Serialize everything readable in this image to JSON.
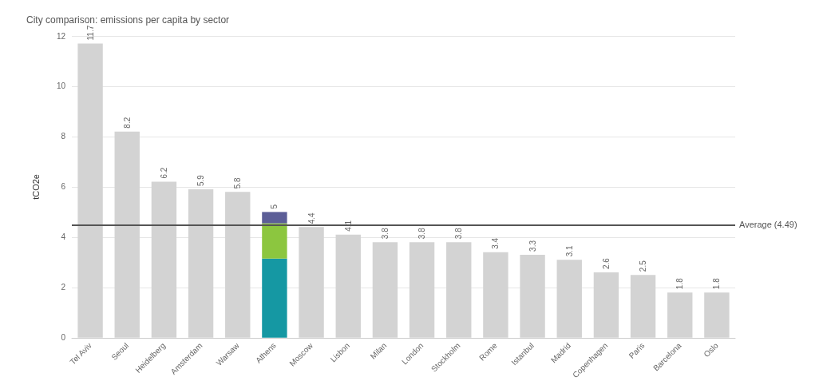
{
  "chart_data": {
    "type": "bar",
    "title": "City comparison: emissions per capita by sector",
    "ylabel": "tCO2e",
    "categories": [
      "Tel Aviv",
      "Seoul",
      "Heidelberg",
      "Amsterdam",
      "Warsaw",
      "Athens",
      "Moscow",
      "Lisbon",
      "Milan",
      "London",
      "Stockholm",
      "Rome",
      "Istanbul",
      "Madrid",
      "Copenhagen",
      "Paris",
      "Barcelona",
      "Oslo"
    ],
    "series": [
      {
        "color": "#d3d3d3",
        "values": [
          11.7,
          8.2,
          6.2,
          5.9,
          5.8,
          null,
          4.4,
          4.1,
          3.8,
          3.8,
          3.8,
          3.4,
          3.3,
          3.1,
          2.6,
          2.5,
          1.8,
          1.8
        ]
      },
      {
        "color": "#1598a3",
        "values": [
          null,
          null,
          null,
          null,
          null,
          3.15,
          null,
          null,
          null,
          null,
          null,
          null,
          null,
          null,
          null,
          null,
          null,
          null
        ]
      },
      {
        "color": "#8cc63f",
        "values": [
          null,
          null,
          null,
          null,
          null,
          1.4,
          null,
          null,
          null,
          null,
          null,
          null,
          null,
          null,
          null,
          null,
          null,
          null
        ]
      },
      {
        "color": "#5c5e97",
        "values": [
          null,
          null,
          null,
          null,
          null,
          0.45,
          null,
          null,
          null,
          null,
          null,
          null,
          null,
          null,
          null,
          null,
          null,
          null
        ]
      }
    ],
    "stacked": true,
    "totals": [
      "11.7",
      "8.2",
      "6.2",
      "5.9",
      "5.8",
      "5",
      "4.4",
      "4.1",
      "3.8",
      "3.8",
      "3.8",
      "3.4",
      "3.3",
      "3.1",
      "2.6",
      "2.5",
      "1.8",
      "1.8"
    ],
    "ylim": [
      0,
      12
    ],
    "yticks": [
      0,
      2,
      4,
      6,
      8,
      10,
      12
    ],
    "grid": "y",
    "ref_lines": [
      {
        "axis": "y",
        "value": 4.49,
        "label": "Average (4.49)",
        "color": "#555555"
      }
    ]
  }
}
